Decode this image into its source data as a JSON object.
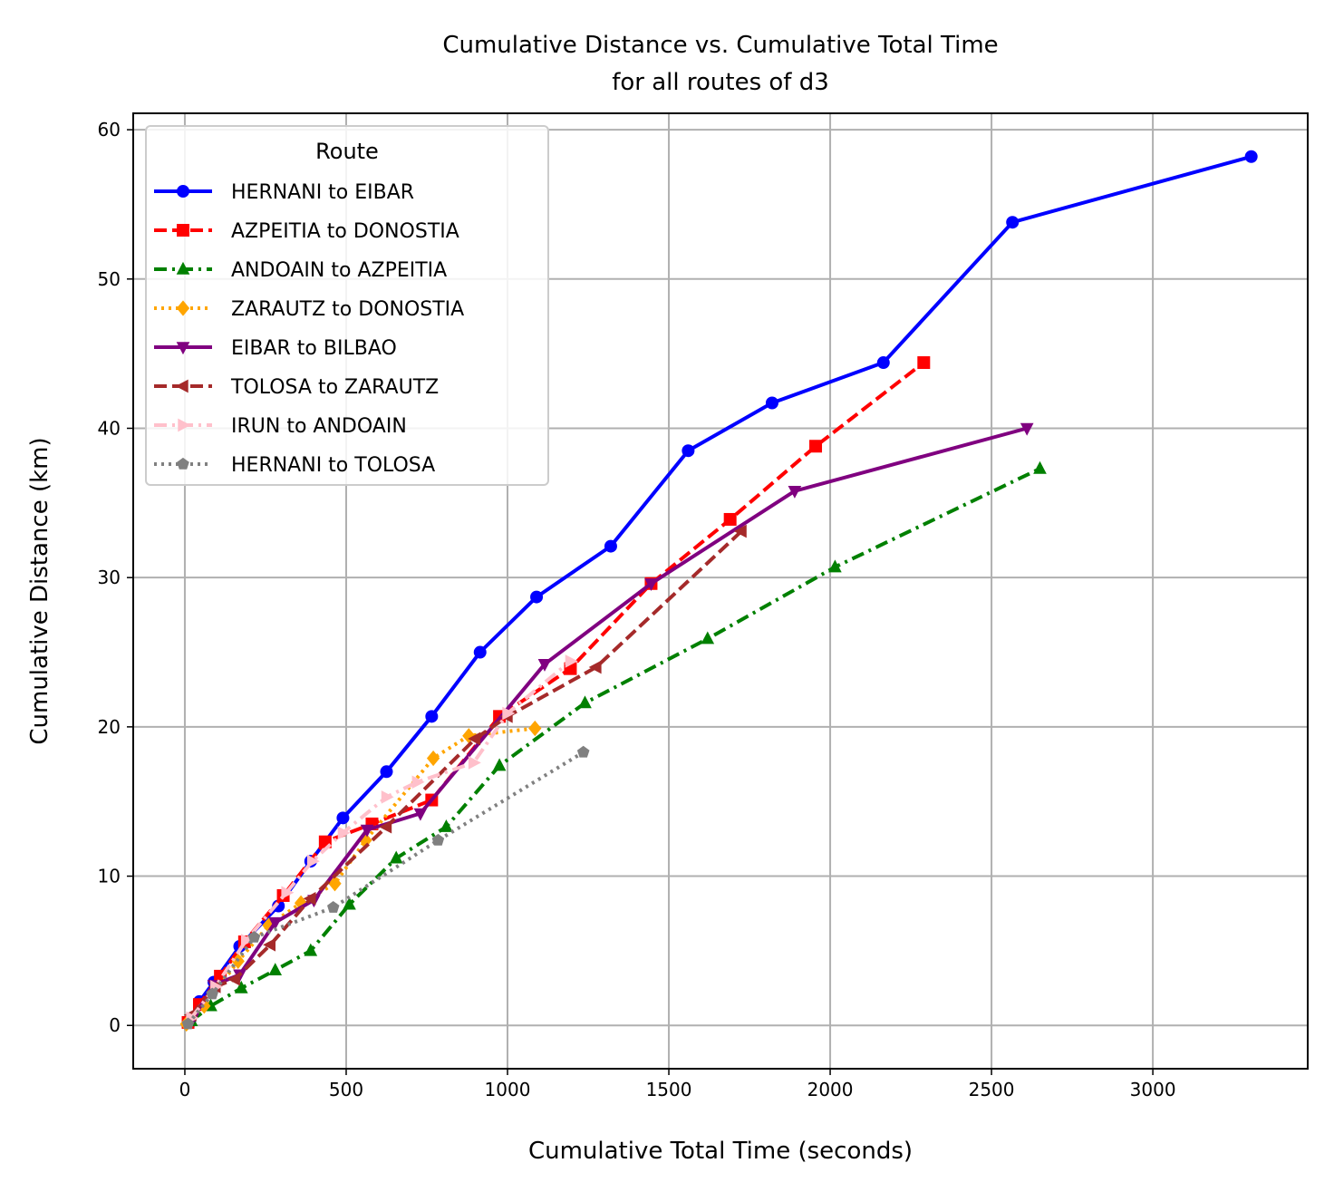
{
  "chart_data": {
    "type": "line",
    "title": "Cumulative Distance vs. Cumulative Total Time",
    "subtitle": "for all routes of d3",
    "xlabel": "Cumulative Total Time (seconds)",
    "ylabel": "Cumulative Distance (km)",
    "xlim": [
      -160,
      3480
    ],
    "ylim": [
      -2.9,
      61.1
    ],
    "xticks": [
      0,
      500,
      1000,
      1500,
      2000,
      2500,
      3000
    ],
    "yticks": [
      0,
      10,
      20,
      30,
      40,
      50,
      60
    ],
    "grid": true,
    "legend": {
      "title": "Route",
      "position": "top-left"
    },
    "series": [
      {
        "name": "HERNANI to EIBAR",
        "color": "#0000ff",
        "dash": "solid",
        "marker": "circle",
        "points": [
          [
            15,
            0.2
          ],
          [
            45,
            1.6
          ],
          [
            90,
            2.9
          ],
          [
            170,
            5.3
          ],
          [
            290,
            8.0
          ],
          [
            390,
            11.0
          ],
          [
            490,
            13.9
          ],
          [
            625,
            17.0
          ],
          [
            765,
            20.7
          ],
          [
            915,
            25.0
          ],
          [
            1090,
            28.7
          ],
          [
            1320,
            32.1
          ],
          [
            1560,
            38.5
          ],
          [
            1820,
            41.7
          ],
          [
            2165,
            44.4
          ],
          [
            2565,
            53.8
          ],
          [
            3305,
            58.2
          ]
        ]
      },
      {
        "name": "AZPEITIA to DONOSTIA",
        "color": "#ff0000",
        "dash": "dashed",
        "marker": "square",
        "points": [
          [
            10,
            0.2
          ],
          [
            45,
            1.4
          ],
          [
            110,
            3.3
          ],
          [
            185,
            5.6
          ],
          [
            305,
            8.7
          ],
          [
            435,
            12.3
          ],
          [
            580,
            13.5
          ],
          [
            765,
            15.1
          ],
          [
            975,
            20.7
          ],
          [
            1195,
            23.9
          ],
          [
            1445,
            29.6
          ],
          [
            1690,
            33.9
          ],
          [
            1955,
            38.8
          ],
          [
            2290,
            44.4
          ]
        ]
      },
      {
        "name": "ANDOAIN to AZPEITIA",
        "color": "#008000",
        "dash": "dashdot",
        "marker": "triangle-up",
        "points": [
          [
            20,
            0.3
          ],
          [
            80,
            1.3
          ],
          [
            175,
            2.5
          ],
          [
            280,
            3.7
          ],
          [
            390,
            5.0
          ],
          [
            510,
            8.1
          ],
          [
            655,
            11.2
          ],
          [
            810,
            13.3
          ],
          [
            975,
            17.4
          ],
          [
            1240,
            21.6
          ],
          [
            1620,
            25.9
          ],
          [
            2015,
            30.7
          ],
          [
            2650,
            37.3
          ]
        ]
      },
      {
        "name": "ZARAUTZ to DONOSTIA",
        "color": "#ffa500",
        "dash": "dotted",
        "marker": "diamond",
        "points": [
          [
            5,
            0.1
          ],
          [
            60,
            1.3
          ],
          [
            165,
            4.3
          ],
          [
            260,
            6.7
          ],
          [
            360,
            8.2
          ],
          [
            465,
            9.5
          ],
          [
            560,
            12.4
          ],
          [
            770,
            17.9
          ],
          [
            880,
            19.4
          ],
          [
            1085,
            19.9
          ]
        ]
      },
      {
        "name": "EIBAR to BILBAO",
        "color": "#800080",
        "dash": "solid",
        "marker": "triangle-down",
        "points": [
          [
            25,
            0.5
          ],
          [
            90,
            2.7
          ],
          [
            170,
            3.4
          ],
          [
            280,
            6.9
          ],
          [
            400,
            8.4
          ],
          [
            565,
            13.1
          ],
          [
            730,
            14.2
          ],
          [
            1115,
            24.2
          ],
          [
            1445,
            29.6
          ],
          [
            1890,
            35.8
          ],
          [
            2610,
            40.0
          ]
        ]
      },
      {
        "name": "TOLOSA to ZARAUTZ",
        "color": "#a52a2a",
        "dash": "dashed",
        "marker": "triangle-left",
        "points": [
          [
            20,
            0.7
          ],
          [
            95,
            2.6
          ],
          [
            155,
            3.1
          ],
          [
            265,
            5.4
          ],
          [
            390,
            8.5
          ],
          [
            625,
            13.3
          ],
          [
            900,
            19.2
          ],
          [
            1000,
            20.7
          ],
          [
            1275,
            24.0
          ],
          [
            1725,
            33.1
          ]
        ]
      },
      {
        "name": "IRUN to ANDOAIN",
        "color": "#ffc0cb",
        "dash": "dashdot",
        "marker": "triangle-right",
        "points": [
          [
            20,
            0.5
          ],
          [
            95,
            2.6
          ],
          [
            190,
            5.7
          ],
          [
            315,
            8.9
          ],
          [
            395,
            11.0
          ],
          [
            490,
            12.9
          ],
          [
            625,
            15.3
          ],
          [
            720,
            16.3
          ],
          [
            895,
            17.6
          ],
          [
            1000,
            20.9
          ],
          [
            1195,
            24.4
          ]
        ]
      },
      {
        "name": "HERNANI to TOLOSA",
        "color": "#808080",
        "dash": "dotted",
        "marker": "pentagon",
        "points": [
          [
            10,
            0.1
          ],
          [
            85,
            2.1
          ],
          [
            215,
            5.9
          ],
          [
            460,
            7.9
          ],
          [
            785,
            12.4
          ],
          [
            1235,
            18.3
          ]
        ]
      }
    ]
  }
}
